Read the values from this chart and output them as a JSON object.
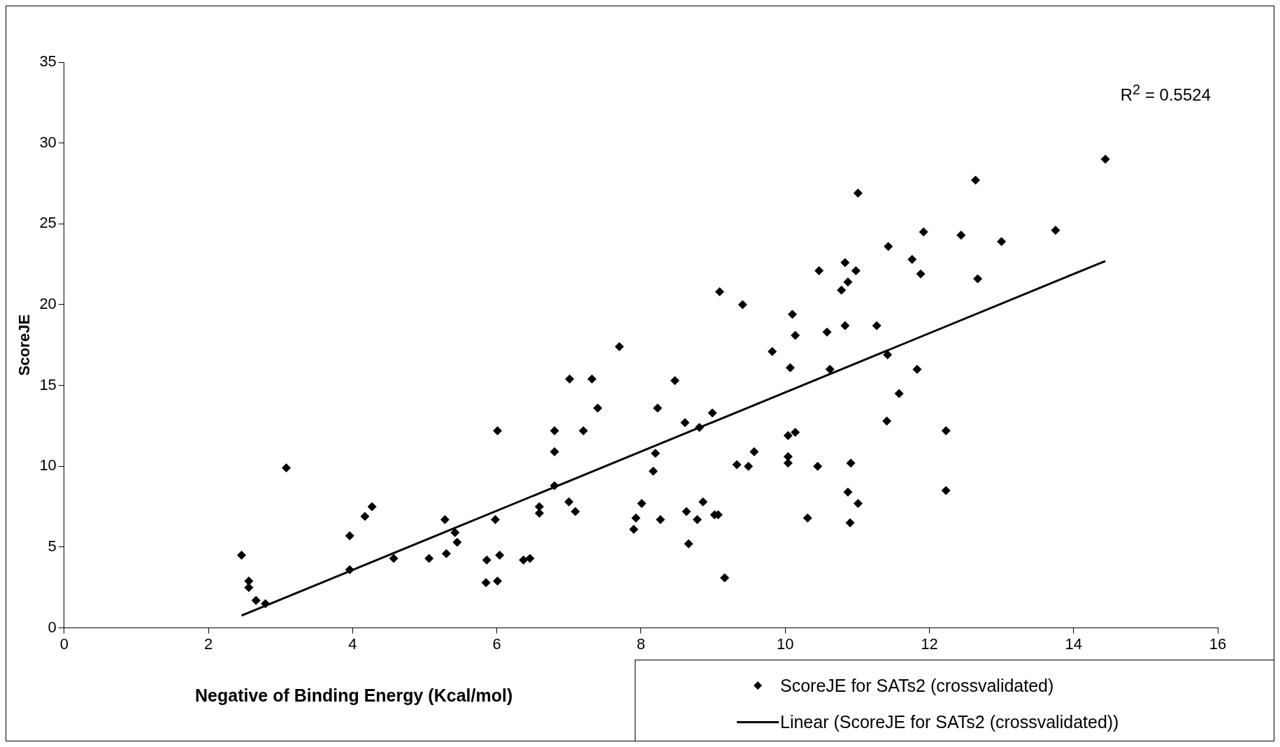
{
  "chart_data": {
    "type": "scatter",
    "xlabel": "Negative of Binding Energy (Kcal/mol)",
    "ylabel": "ScoreJE",
    "annotations": [
      "R$^{2}$ = 0.5524"
    ],
    "xlim": [
      0,
      16
    ],
    "xticks": [
      0,
      2,
      4,
      6,
      8,
      10,
      12,
      14,
      16
    ],
    "ylim": [
      0,
      35
    ],
    "yticks": [
      0,
      5,
      10,
      15,
      20,
      25,
      30,
      35
    ],
    "grid": false,
    "legend": "bottom right",
    "marker": "diamond",
    "series": [
      {
        "name": "ScoreJE for SATs2 (crossvalidated)",
        "color": "#000000",
        "x": [
          2.46,
          2.56,
          2.56,
          2.66,
          2.79,
          3.08,
          3.96,
          3.96,
          4.17,
          4.27,
          4.57,
          5.06,
          5.28,
          5.3,
          5.42,
          5.45,
          5.86,
          5.85,
          6.01,
          5.98,
          6.01,
          6.04,
          6.37,
          6.46,
          6.59,
          6.59,
          6.8,
          6.8,
          6.8,
          7.0,
          7.01,
          7.09,
          7.2,
          7.32,
          7.4,
          7.7,
          7.9,
          7.93,
          8.01,
          8.17,
          8.2,
          8.23,
          8.27,
          8.47,
          8.61,
          8.63,
          8.66,
          8.78,
          8.81,
          8.86,
          8.99,
          9.02,
          9.07,
          9.09,
          9.16,
          9.33,
          9.41,
          9.49,
          9.57,
          9.82,
          10.04,
          10.04,
          10.04,
          10.07,
          10.1,
          10.14,
          10.14,
          10.31,
          10.45,
          10.47,
          10.58,
          10.62,
          10.78,
          10.83,
          10.83,
          10.87,
          10.87,
          10.91,
          10.9,
          10.98,
          11.01,
          11.01,
          11.27,
          11.41,
          11.42,
          11.43,
          11.58,
          11.76,
          11.83,
          11.88,
          11.92,
          12.23,
          12.23,
          12.44,
          12.64,
          12.67,
          13.0,
          13.75,
          14.44
        ],
        "values": [
          4.5,
          2.9,
          2.5,
          1.7,
          1.5,
          9.9,
          5.7,
          3.6,
          6.9,
          7.5,
          4.3,
          4.3,
          6.7,
          4.6,
          5.9,
          5.3,
          4.2,
          2.8,
          12.2,
          6.7,
          2.9,
          4.5,
          4.2,
          4.3,
          7.5,
          7.1,
          12.2,
          10.9,
          8.8,
          7.8,
          15.4,
          7.2,
          12.2,
          15.4,
          13.6,
          17.4,
          6.1,
          6.8,
          7.7,
          9.7,
          10.8,
          13.6,
          6.7,
          15.3,
          12.7,
          7.2,
          5.2,
          6.7,
          12.4,
          7.8,
          13.3,
          7.0,
          7.0,
          20.8,
          3.1,
          10.1,
          20.0,
          10.0,
          10.9,
          17.1,
          11.9,
          10.6,
          10.2,
          16.1,
          19.4,
          18.1,
          12.1,
          6.8,
          10.0,
          22.1,
          18.3,
          16.0,
          20.9,
          18.7,
          22.6,
          8.4,
          21.4,
          10.2,
          6.5,
          22.1,
          7.7,
          26.9,
          18.7,
          12.8,
          16.9,
          23.6,
          14.5,
          22.8,
          16.0,
          21.9,
          24.5,
          12.2,
          8.5,
          24.3,
          27.7,
          21.6,
          23.9,
          24.6,
          29.0
        ]
      },
      {
        "name": "Linear (ScoreJE for SATs2 (crossvalidated))",
        "color": "#000000",
        "type": "line",
        "marker": "none",
        "line_style": "solid",
        "x": [
          2.46,
          14.44
        ],
        "values": [
          0.77,
          22.7
        ]
      }
    ]
  }
}
